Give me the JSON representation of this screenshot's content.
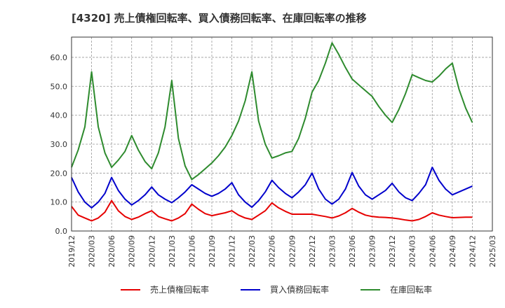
{
  "chart_data": {
    "type": "line",
    "title": "[4320]  売上債権回転率、買入債務回転率、在庫回転率の推移",
    "xlabel": "",
    "ylabel": "",
    "ylim": [
      0,
      67
    ],
    "yticks": [
      "0.0",
      "10.0",
      "20.0",
      "30.0",
      "40.0",
      "50.0",
      "60.0"
    ],
    "ytick_values": [
      0,
      10,
      20,
      30,
      40,
      50,
      60
    ],
    "xticks": [
      "2019/12",
      "2020/03",
      "2020/06",
      "2020/09",
      "2020/12",
      "2021/03",
      "2021/06",
      "2021/09",
      "2021/12",
      "2022/03",
      "2022/06",
      "2022/09",
      "2022/12",
      "2023/03",
      "2023/06",
      "2023/09",
      "2023/12",
      "2024/03",
      "2024/06",
      "2024/09",
      "2024/12",
      "2025/03"
    ],
    "x_months": [
      "2019/12",
      "2020/01",
      "2020/02",
      "2020/03",
      "2020/04",
      "2020/05",
      "2020/06",
      "2020/07",
      "2020/08",
      "2020/09",
      "2020/10",
      "2020/11",
      "2020/12",
      "2021/01",
      "2021/02",
      "2021/03",
      "2021/04",
      "2021/05",
      "2021/06",
      "2021/07",
      "2021/08",
      "2021/09",
      "2021/10",
      "2021/11",
      "2021/12",
      "2022/01",
      "2022/02",
      "2022/03",
      "2022/04",
      "2022/05",
      "2022/06",
      "2022/07",
      "2022/08",
      "2022/09",
      "2022/10",
      "2022/11",
      "2022/12",
      "2023/01",
      "2023/02",
      "2023/03",
      "2023/04",
      "2023/05",
      "2023/06",
      "2023/07",
      "2023/08",
      "2023/09",
      "2023/10",
      "2023/11",
      "2023/12",
      "2024/01",
      "2024/02",
      "2024/03",
      "2024/04",
      "2024/05",
      "2024/06",
      "2024/07",
      "2024/08",
      "2024/09",
      "2024/10",
      "2024/11",
      "2024/12"
    ],
    "grid": true,
    "legend_position": "bottom",
    "series": [
      {
        "name": "売上債権回転率",
        "color": "#e60000",
        "values": [
          8.5,
          5.5,
          4.5,
          3.5,
          4.5,
          6.5,
          10.5,
          7.0,
          5.0,
          4.0,
          4.8,
          6.0,
          7.0,
          5.0,
          4.2,
          3.5,
          4.5,
          6.0,
          9.3,
          7.5,
          6.0,
          5.3,
          5.8,
          6.3,
          7.0,
          5.5,
          4.5,
          4.0,
          5.5,
          7.0,
          9.7,
          8.0,
          6.8,
          5.8,
          5.8,
          5.8,
          5.8,
          5.4,
          5.0,
          4.5,
          5.2,
          6.3,
          7.8,
          6.5,
          5.5,
          5.0,
          4.8,
          4.7,
          4.5,
          4.2,
          3.8,
          3.5,
          4.0,
          5.0,
          6.3,
          5.5,
          5.0,
          4.6,
          4.7,
          4.8,
          4.8
        ]
      },
      {
        "name": "買入債務回転率",
        "color": "#0000cc",
        "values": [
          18.5,
          13.5,
          10.0,
          8.0,
          10.0,
          13.0,
          18.5,
          14.0,
          11.0,
          9.0,
          10.5,
          12.5,
          15.2,
          12.5,
          11.0,
          9.8,
          11.5,
          13.5,
          16.0,
          14.5,
          13.0,
          12.0,
          13.0,
          14.5,
          16.7,
          12.5,
          10.0,
          8.2,
          10.5,
          13.5,
          17.5,
          15.0,
          13.0,
          11.5,
          13.5,
          16.0,
          20.0,
          14.5,
          11.0,
          9.3,
          11.0,
          14.5,
          20.2,
          15.5,
          12.5,
          11.0,
          12.5,
          14.0,
          16.5,
          13.5,
          11.5,
          10.5,
          13.0,
          16.0,
          22.0,
          17.5,
          14.5,
          12.5,
          13.5,
          14.5,
          15.5
        ]
      },
      {
        "name": "在庫回転率",
        "color": "#2e8b2e",
        "values": [
          22.0,
          28.0,
          36.0,
          55.0,
          36.0,
          27.0,
          22.0,
          24.5,
          27.5,
          33.0,
          28.0,
          24.0,
          21.5,
          27.0,
          36.0,
          52.0,
          32.0,
          22.5,
          17.8,
          19.5,
          21.5,
          23.5,
          26.0,
          29.0,
          33.0,
          38.0,
          45.0,
          55.0,
          38.0,
          30.0,
          25.2,
          26.0,
          27.0,
          27.5,
          32.0,
          39.0,
          48.0,
          52.0,
          58.0,
          65.0,
          61.0,
          56.5,
          52.5,
          50.5,
          48.5,
          46.5,
          43.0,
          40.0,
          37.5,
          42.0,
          47.5,
          54.0,
          53.0,
          52.0,
          51.5,
          53.5,
          56.0,
          58.0,
          49.0,
          42.5,
          37.5
        ]
      }
    ]
  }
}
